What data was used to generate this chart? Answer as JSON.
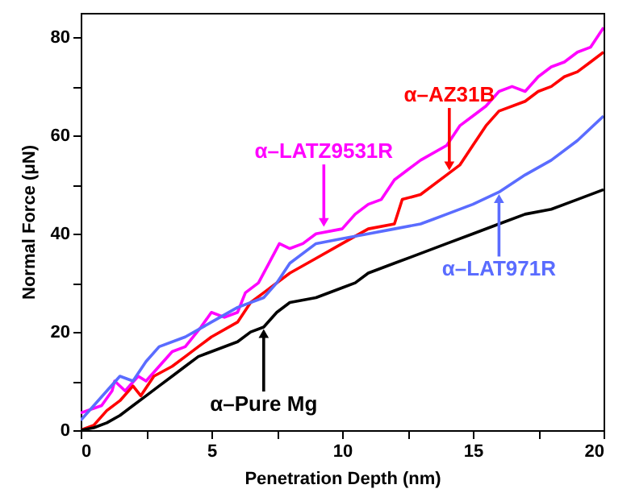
{
  "chart_data": {
    "type": "line",
    "xlabel": "Penetration Depth (nm)",
    "ylabel": "Normal Force (μN)",
    "xlim": [
      0,
      20
    ],
    "ylim": [
      0,
      85
    ],
    "xticks": [
      0,
      {
        "value": 2.5,
        "label": null
      },
      5,
      {
        "value": 7.5,
        "label": null
      },
      10,
      {
        "value": 12.5,
        "label": null
      },
      15,
      {
        "value": 17.5,
        "label": null
      },
      20
    ],
    "yticks": [
      0,
      {
        "value": 10,
        "label": null
      },
      20,
      {
        "value": 30,
        "label": null
      },
      40,
      {
        "value": 50,
        "label": null
      },
      60,
      {
        "value": 70,
        "label": null
      },
      80
    ],
    "grid": false,
    "series": [
      {
        "color": "#ff00ff",
        "x": [
          0,
          0.8,
          1.2,
          1.3,
          1.7,
          2.2,
          2.5,
          3,
          3.5,
          4,
          4.6,
          5,
          5.5,
          6,
          6.3,
          6.8,
          7.2,
          7.6,
          8,
          8.5,
          9,
          10,
          10.5,
          11,
          11.5,
          12,
          12.5,
          13,
          14,
          14.5,
          15,
          15.5,
          16,
          16.5,
          17,
          17.5,
          18,
          18.5,
          19,
          19.5,
          20
        ],
        "values": [
          3.5,
          5,
          8,
          10,
          8,
          11,
          10,
          13,
          16,
          17,
          21,
          24,
          23,
          24,
          28,
          30,
          34,
          38,
          37,
          38,
          40,
          41,
          44,
          46,
          47,
          51,
          53,
          55,
          58,
          62,
          64,
          66,
          69,
          70,
          69,
          72,
          74,
          75,
          77,
          78,
          82
        ]
      },
      {
        "color": "#ff0000",
        "x": [
          0,
          0.5,
          1,
          1.5,
          2,
          2.3,
          2.8,
          3.5,
          4,
          4.5,
          5,
          6,
          6.5,
          7,
          8,
          9,
          10,
          11,
          12,
          12.3,
          13,
          14,
          14.5,
          15,
          15.5,
          16,
          17,
          17.5,
          18,
          18.5,
          19,
          19.5,
          20
        ],
        "values": [
          0,
          1,
          4,
          6,
          9,
          7,
          11,
          13,
          15,
          17,
          19,
          22,
          26,
          28,
          32,
          35,
          38,
          41,
          42,
          47,
          48,
          52,
          54,
          58,
          62,
          65,
          67,
          69,
          70,
          72,
          73,
          75,
          77
        ]
      },
      {
        "color": "#5a6cff",
        "x": [
          0,
          1,
          1.5,
          2,
          2.5,
          3,
          4,
          5,
          6,
          7,
          7.5,
          8,
          9,
          10,
          11,
          12,
          13,
          13.5,
          14,
          15,
          16,
          17,
          18,
          19,
          20
        ],
        "values": [
          2,
          8,
          11,
          10,
          14,
          17,
          19,
          22,
          25,
          27,
          30,
          34,
          38,
          39,
          40,
          41,
          42,
          43,
          44,
          46,
          48.5,
          52,
          55,
          59,
          64
        ]
      },
      {
        "color": "#000000",
        "x": [
          0,
          0.5,
          1,
          1.5,
          2,
          2.5,
          3,
          3.5,
          4,
          4.5,
          5,
          6,
          6.5,
          7,
          7.5,
          8,
          9,
          10,
          10.5,
          11,
          12,
          13,
          14,
          15,
          16,
          17,
          18,
          19,
          20
        ],
        "values": [
          0,
          0.5,
          1.5,
          3,
          5,
          7,
          9,
          11,
          13,
          15,
          16,
          18,
          20,
          21,
          24,
          26,
          27,
          29,
          30,
          32,
          34,
          36,
          38,
          40,
          42,
          44,
          45,
          47,
          49
        ]
      }
    ],
    "annotations": [
      {
        "text": "α–LATZ9531R",
        "x": 9.3,
        "y": 41
      },
      {
        "text": "α–AZ31B",
        "x": 14.1,
        "y": 52.5
      },
      {
        "text": "α–LAT971R",
        "x": 16,
        "y": 48.5
      },
      {
        "text": "α–Pure Mg",
        "x": 7,
        "y": 21
      }
    ]
  }
}
